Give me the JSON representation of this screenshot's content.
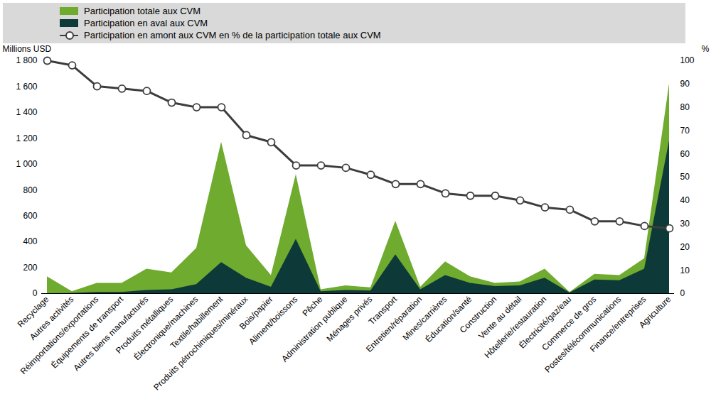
{
  "chart_data": {
    "type": "area",
    "y_label": "Millions USD",
    "y2_label": "%",
    "categories": [
      "Recyclage",
      "Autres activités",
      "Réimportations/exportations",
      "Équipements de transport",
      "Autres biens manufacturés",
      "Produits métalliques",
      "Électronique/machines",
      "Textile/habillement",
      "Produits pétrochimiques/minéraux",
      "Bois/papier",
      "Aliment/boissons",
      "Pêche",
      "Administration publique",
      "Ménages privés",
      "Transport",
      "Entretien/réparation",
      "Mines/carrières",
      "Éducation/santé",
      "Construction",
      "Vente au détail",
      "Hôtellerie/restauration",
      "Électricité/gaz/eau",
      "Commerce de gros",
      "Postes/télécommunications",
      "Finance/entreprises",
      "Agriculture"
    ],
    "series": [
      {
        "name": "Participation totale aux CVM",
        "type": "area",
        "color": "#6eab2e",
        "values": [
          130,
          15,
          80,
          80,
          190,
          160,
          350,
          1170,
          370,
          140,
          920,
          30,
          60,
          45,
          560,
          50,
          245,
          130,
          80,
          90,
          190,
          10,
          150,
          140,
          270,
          1620
        ]
      },
      {
        "name": "Participation en aval aux CVM",
        "type": "area",
        "color": "#0d3a39",
        "values": [
          0,
          2,
          10,
          10,
          25,
          30,
          70,
          240,
          120,
          50,
          420,
          15,
          25,
          20,
          300,
          30,
          140,
          80,
          55,
          60,
          120,
          5,
          105,
          100,
          190,
          1180
        ]
      },
      {
        "name": "Participation en amont aux CVM en % de la participation totale aux CVM",
        "type": "line",
        "axis": "y2",
        "color": "#3d3d3d",
        "marker": "circle",
        "values": [
          100,
          98,
          89,
          88,
          87,
          82,
          80,
          80,
          68,
          65,
          55,
          55,
          54,
          51,
          47,
          47,
          43,
          42,
          42,
          40,
          37,
          36,
          31,
          31,
          29,
          28
        ]
      }
    ],
    "stacked": false,
    "grid": false,
    "legend": "top",
    "ylim": [
      0,
      1800
    ],
    "yticks": [
      0,
      200,
      400,
      600,
      800,
      {
        "value": 1000,
        "label": "1 000"
      },
      {
        "value": 1200,
        "label": "1 200"
      },
      {
        "value": 1400,
        "label": "1 400"
      },
      {
        "value": 1600,
        "label": "1 600"
      },
      {
        "value": 1800,
        "label": "1 800"
      }
    ],
    "y2lim": [
      0,
      100
    ],
    "y2ticks": [
      0,
      10,
      20,
      30,
      40,
      50,
      60,
      70,
      80,
      90,
      100
    ]
  }
}
